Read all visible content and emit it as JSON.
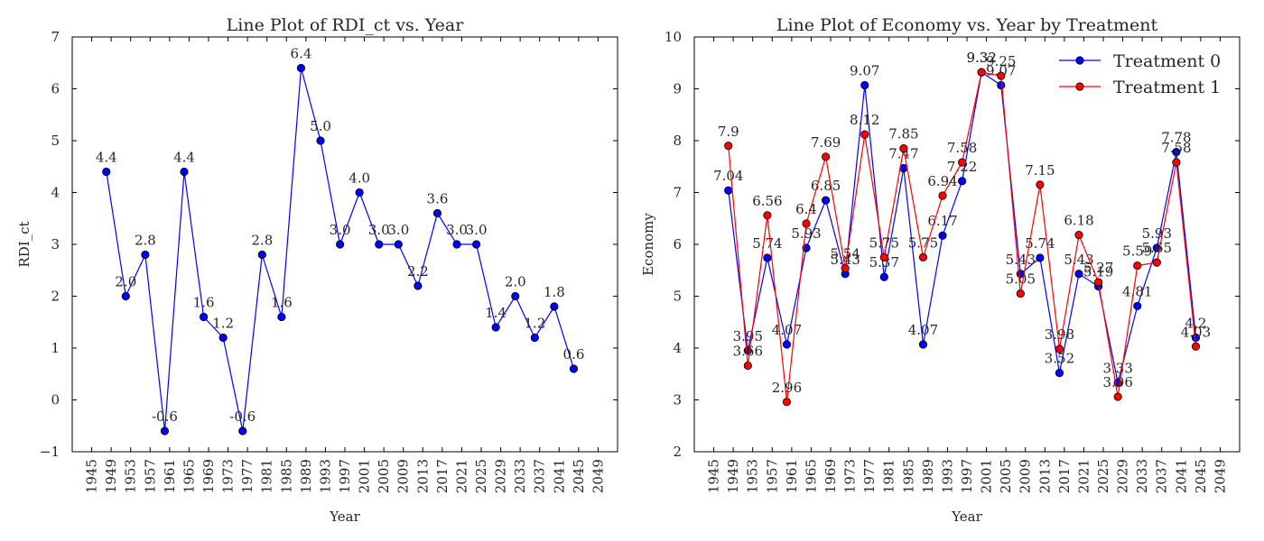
{
  "chart_data": [
    {
      "type": "line",
      "title": "Line Plot of RDI_ct vs. Year",
      "xlabel": "Year",
      "ylabel": "RDI_ct",
      "xlim": [
        1941,
        2053
      ],
      "ylim": [
        -1,
        7
      ],
      "xticks": [
        1945,
        1949,
        1953,
        1957,
        1961,
        1965,
        1969,
        1973,
        1977,
        1981,
        1985,
        1989,
        1993,
        1997,
        2001,
        2005,
        2009,
        2013,
        2017,
        2021,
        2025,
        2029,
        2033,
        2037,
        2041,
        2045,
        2049
      ],
      "yticks": [
        -1,
        0,
        1,
        2,
        3,
        4,
        5,
        6,
        7
      ],
      "ytick_labels": [
        "−1",
        "0",
        "1",
        "2",
        "3",
        "4",
        "5",
        "6",
        "7"
      ],
      "legend": "none",
      "grid": false,
      "series": [
        {
          "color": "#0000ff",
          "x": [
            1948,
            1952,
            1956,
            1960,
            1964,
            1968,
            1972,
            1976,
            1980,
            1984,
            1988,
            1992,
            1996,
            2000,
            2004,
            2008,
            2012,
            2016,
            2020,
            2024,
            2028,
            2032,
            2036,
            2040,
            2044
          ],
          "y": [
            4.4,
            2.0,
            2.8,
            -0.6,
            4.4,
            1.6,
            1.2,
            -0.6,
            2.8,
            1.6,
            6.4,
            5.0,
            3.0,
            4.0,
            3.0,
            3.0,
            2.2,
            3.6,
            3.0,
            3.0,
            1.4,
            2.0,
            1.2,
            1.8,
            0.6
          ],
          "labels": [
            "4.4",
            "2.0",
            "2.8",
            "-0.6",
            "4.4",
            "1.6",
            "1.2",
            "-0.6",
            "2.8",
            "1.6",
            "6.4",
            "5.0",
            "3.0",
            "4.0",
            "3.0",
            "3.0",
            "2.2",
            "3.6",
            "3.0",
            "3.0",
            "1.4",
            "2.0",
            "1.2",
            "1.8",
            "0.6"
          ]
        }
      ]
    },
    {
      "type": "line",
      "title": "Line Plot of Economy vs. Year by Treatment",
      "xlabel": "Year",
      "ylabel": "Economy",
      "xlim": [
        1941,
        2053
      ],
      "ylim": [
        2,
        10
      ],
      "xticks": [
        1945,
        1949,
        1953,
        1957,
        1961,
        1965,
        1969,
        1973,
        1977,
        1981,
        1985,
        1989,
        1993,
        1997,
        2001,
        2005,
        2009,
        2013,
        2017,
        2021,
        2025,
        2029,
        2033,
        2037,
        2041,
        2045,
        2049
      ],
      "yticks": [
        2,
        3,
        4,
        5,
        6,
        7,
        8,
        9,
        10
      ],
      "ytick_labels": [
        "2",
        "3",
        "4",
        "5",
        "6",
        "7",
        "8",
        "9",
        "10"
      ],
      "legend": "top-right",
      "grid": false,
      "series": [
        {
          "name": "Treatment 0",
          "color": "#0000ff",
          "x": [
            1948,
            1952,
            1956,
            1960,
            1964,
            1968,
            1972,
            1976,
            1980,
            1984,
            1988,
            1992,
            1996,
            2000,
            2004,
            2008,
            2012,
            2016,
            2020,
            2024,
            2028,
            2032,
            2036,
            2040,
            2044
          ],
          "y": [
            7.04,
            3.95,
            5.74,
            4.07,
            5.93,
            6.85,
            5.43,
            9.07,
            5.37,
            7.47,
            4.07,
            6.17,
            7.22,
            9.32,
            9.07,
            5.43,
            5.74,
            3.52,
            5.43,
            5.19,
            3.33,
            4.81,
            5.93,
            7.78,
            4.2
          ],
          "labels": [
            "7.04",
            "3.95",
            "5.74",
            "4.07",
            "5.93",
            "6.85",
            "5.43",
            "9.07",
            "5.37",
            "7.47",
            "4.07",
            "6.17",
            "7.22",
            "9.32",
            "9.07",
            "5.43",
            "5.74",
            "3.52",
            "5.43",
            "5.19",
            "3.33",
            "4.81",
            "5.93",
            "7.78",
            "4.2"
          ]
        },
        {
          "name": "Treatment 1",
          "color": "#ff0000",
          "x": [
            1948,
            1952,
            1956,
            1960,
            1964,
            1968,
            1972,
            1976,
            1980,
            1984,
            1988,
            1992,
            1996,
            2000,
            2004,
            2008,
            2012,
            2016,
            2020,
            2024,
            2028,
            2032,
            2036,
            2040,
            2044
          ],
          "y": [
            7.9,
            3.66,
            6.56,
            2.96,
            6.4,
            7.69,
            5.54,
            8.12,
            5.75,
            7.85,
            5.75,
            6.94,
            7.58,
            9.32,
            9.25,
            5.05,
            7.15,
            3.98,
            6.18,
            5.27,
            3.06,
            5.59,
            5.65,
            7.58,
            4.03
          ],
          "labels": [
            "7.9",
            "3.66",
            "6.56",
            "2.96",
            "6.4",
            "7.69",
            "5.54",
            "8.12",
            "5.75",
            "7.85",
            "5.75",
            "6.94",
            "7.58",
            "9.32",
            "9.25",
            "5.05",
            "7.15",
            "3.98",
            "6.18",
            "5.27",
            "3.06",
            "5.59",
            "5.65",
            "7.58",
            "4.03"
          ]
        }
      ]
    }
  ]
}
